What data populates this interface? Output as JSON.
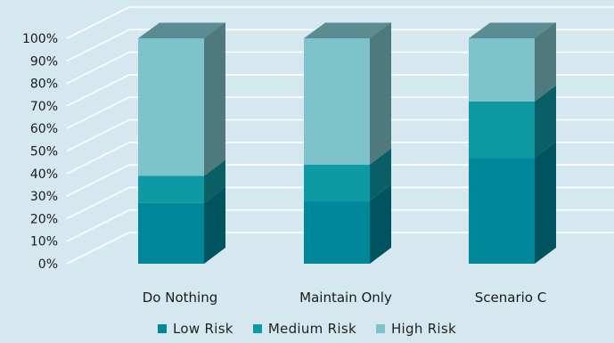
{
  "chart_data": {
    "type": "bar",
    "stacked": true,
    "three_d": true,
    "categories": [
      "Do Nothing",
      "Maintain Only",
      "Scenario C"
    ],
    "series": [
      {
        "name": "Low Risk",
        "values": [
          27,
          28,
          47
        ],
        "color": "#00879a"
      },
      {
        "name": "Medium Risk",
        "values": [
          12,
          16,
          25
        ],
        "color": "#0e9aa3"
      },
      {
        "name": "High Risk",
        "values": [
          61,
          56,
          28
        ],
        "color": "#7ec3c9"
      }
    ],
    "y_ticks": [
      "0%",
      "10%",
      "20%",
      "30%",
      "40%",
      "50%",
      "60%",
      "70%",
      "80%",
      "90%",
      "100%"
    ],
    "ylim": [
      0,
      100
    ],
    "grid": true,
    "legend_position": "bottom"
  }
}
